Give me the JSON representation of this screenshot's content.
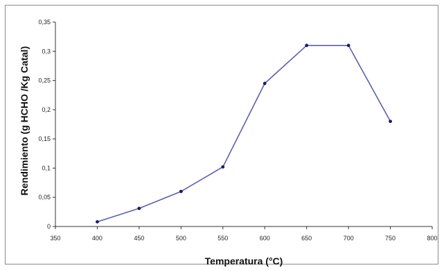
{
  "chart_data": {
    "type": "line",
    "title": "",
    "xlabel": "Temperatura (°C)",
    "ylabel": "Rendimiento (g HCHO /Kg Catal)",
    "x": [
      400,
      450,
      500,
      550,
      600,
      650,
      700,
      750
    ],
    "y": [
      0.008,
      0.031,
      0.06,
      0.102,
      0.245,
      0.31,
      0.31,
      0.18
    ],
    "xlim": [
      350,
      800
    ],
    "ylim": [
      0,
      0.35
    ],
    "x_ticks": [
      350,
      400,
      450,
      500,
      550,
      600,
      650,
      700,
      750,
      800
    ],
    "x_tick_labels": [
      "350",
      "400",
      "450",
      "500",
      "550",
      "600",
      "650",
      "700",
      "750",
      "800"
    ],
    "y_ticks": [
      0,
      0.05,
      0.1,
      0.15,
      0.2,
      0.25,
      0.3,
      0.35
    ],
    "y_tick_labels": [
      "0",
      "0,05",
      "0,1",
      "0,15",
      "0,2",
      "0,25",
      "0,3",
      "0,35"
    ],
    "grid": false,
    "legend": "none",
    "line_color": "#5a5fb0",
    "marker_color": "#1a1a66"
  }
}
